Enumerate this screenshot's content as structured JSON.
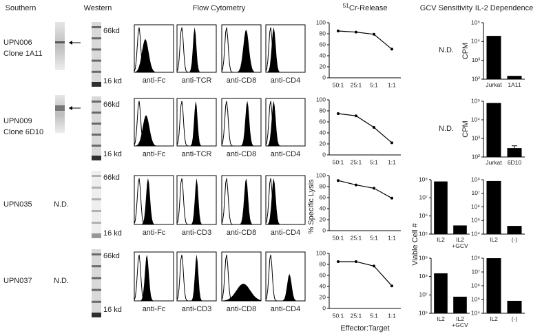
{
  "headers": {
    "southern": "Southern",
    "western": "Western",
    "flow": "Flow Cytometry",
    "cr_sup": "51",
    "cr": "Cr-Release",
    "gcv": "GCV Sensitivity",
    "il2": "IL-2 Dependence"
  },
  "rows": [
    {
      "name": "UPN006",
      "clone": "Clone 1A11",
      "western": [
        "66kd",
        "16 kd"
      ],
      "flow": [
        "anti-Fc",
        "anti-TCR",
        "anti-CD8",
        "anti-CD4"
      ]
    },
    {
      "name": "UPN009",
      "clone": "Clone 6D10",
      "western": [
        "66kd",
        "16 kd"
      ],
      "flow": [
        "anti-Fc",
        "anti-TCR",
        "anti-CD8",
        "anti-CD4"
      ]
    },
    {
      "name": "UPN035",
      "southern": "N.D.",
      "western": [
        "66kd",
        "16 kd"
      ],
      "flow": [
        "anti-Fc",
        "anti-CD3",
        "anti-CD8",
        "anti-CD4"
      ]
    },
    {
      "name": "UPN037",
      "southern": "N.D.",
      "western": [
        "66kd",
        "16 kd"
      ],
      "flow": [
        "anti-Fc",
        "anti-CD3",
        "anti-CD8",
        "anti-CD4"
      ]
    }
  ],
  "gcv_nd": [
    "N.D.",
    "N.D."
  ],
  "chart_data": [
    {
      "type": "line",
      "categories": [
        "50:1",
        "25:1",
        "5:1",
        "1:1"
      ],
      "values": [
        85,
        83,
        79,
        52
      ],
      "ylim": [
        0,
        100
      ],
      "yticks": [
        0,
        20,
        40,
        60,
        80,
        100
      ],
      "color": "#000000"
    },
    {
      "type": "line",
      "categories": [
        "50:1",
        "25:1",
        "5:1",
        "1:1"
      ],
      "values": [
        75,
        71,
        50,
        22
      ],
      "ylim": [
        0,
        100
      ],
      "yticks": [
        0,
        20,
        40,
        60,
        80,
        100
      ],
      "color": "#000000"
    },
    {
      "type": "line",
      "categories": [
        "50:1",
        "25:1",
        "5:1",
        "1:1"
      ],
      "values": [
        91,
        83,
        77,
        59
      ],
      "ylim": [
        0,
        100
      ],
      "yticks": [
        0,
        20,
        40,
        60,
        80,
        100
      ],
      "color": "#000000",
      "y_label": "% Specific Lysis"
    },
    {
      "type": "line",
      "categories": [
        "50:1",
        "25:1",
        "5:1",
        "1:1"
      ],
      "values": [
        85,
        85,
        77,
        41
      ],
      "ylim": [
        0,
        100
      ],
      "yticks": [
        0,
        20,
        40,
        60,
        80,
        100
      ],
      "color": "#000000",
      "x_label": "Effector:Target"
    },
    {
      "type": "bar",
      "categories": [
        "IL2",
        "IL2 +GCV"
      ],
      "values": [
        80000000,
        300000
      ],
      "log_scale": true,
      "ylim": [
        100000,
        100000000
      ],
      "yticks": [
        {
          "value": 100000,
          "label": "10⁵"
        },
        {
          "value": 1000000,
          "label": "10⁶"
        },
        {
          "value": 10000000,
          "label": "10⁷"
        },
        {
          "value": 100000000,
          "label": "10⁸"
        }
      ],
      "color": "#000000",
      "y_label": "Viable Cell #"
    },
    {
      "type": "bar",
      "categories": [
        "IL2",
        "IL2 +GCV"
      ],
      "values": [
        150000000,
        8000000
      ],
      "log_scale": true,
      "ylim": [
        1000000,
        1000000000
      ],
      "yticks": [
        {
          "value": 1000000,
          "label": "10⁶"
        },
        {
          "value": 10000000,
          "label": "10⁷"
        },
        {
          "value": 100000000,
          "label": "10⁸"
        },
        {
          "value": 1000000000,
          "label": "10⁹"
        }
      ],
      "color": "#000000"
    },
    {
      "type": "bar",
      "categories": [
        "Jurkat",
        "1A11"
      ],
      "values": [
        20000,
        150
      ],
      "log_scale": true,
      "ylim": [
        100,
        100000
      ],
      "yticks": [
        {
          "value": 100,
          "label": "10²"
        },
        {
          "value": 1000,
          "label": "10³"
        },
        {
          "value": 10000,
          "label": "10⁴"
        },
        {
          "value": 100000,
          "label": "10⁵"
        }
      ],
      "color": "#000000",
      "y_label": "CPM"
    },
    {
      "type": "bar",
      "categories": [
        "Jurkat",
        "6D10"
      ],
      "values": [
        80000,
        300
      ],
      "errors": [
        null,
        100
      ],
      "log_scale": true,
      "ylim": [
        100,
        100000
      ],
      "yticks": [
        {
          "value": 100,
          "label": "10²"
        },
        {
          "value": 1000,
          "label": "10³"
        },
        {
          "value": 10000,
          "label": "10⁴"
        },
        {
          "value": 100000,
          "label": "10⁵"
        }
      ],
      "color": "#000000",
      "y_label": "CPM"
    },
    {
      "type": "bar",
      "categories": [
        "IL2",
        "(-)"
      ],
      "values": [
        80000000,
        40000
      ],
      "log_scale": true,
      "ylim": [
        10000,
        100000000
      ],
      "yticks": [
        {
          "value": 10000,
          "label": "10⁴"
        },
        {
          "value": 100000,
          "label": "10⁵"
        },
        {
          "value": 1000000,
          "label": "10⁶"
        },
        {
          "value": 10000000,
          "label": "10⁷"
        },
        {
          "value": 100000000,
          "label": "10⁸"
        }
      ],
      "color": "#000000"
    },
    {
      "type": "bar",
      "categories": [
        "IL2",
        "(-)"
      ],
      "values": [
        100000000,
        80000
      ],
      "log_scale": true,
      "ylim": [
        10000,
        100000000
      ],
      "yticks": [
        {
          "value": 10000,
          "label": "10⁴"
        },
        {
          "value": 100000,
          "label": "10⁵"
        },
        {
          "value": 1000000,
          "label": "10⁶"
        },
        {
          "value": 10000000,
          "label": "10⁷"
        },
        {
          "value": 100000000,
          "label": "10⁸"
        }
      ],
      "color": "#000000"
    }
  ]
}
